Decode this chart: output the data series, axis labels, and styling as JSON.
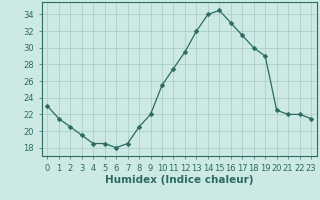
{
  "x": [
    0,
    1,
    2,
    3,
    4,
    5,
    6,
    7,
    8,
    9,
    10,
    11,
    12,
    13,
    14,
    15,
    16,
    17,
    18,
    19,
    20,
    21,
    22,
    23
  ],
  "y": [
    23,
    21.5,
    20.5,
    19.5,
    18.5,
    18.5,
    18,
    18.5,
    20.5,
    22,
    25.5,
    27.5,
    29.5,
    32,
    34,
    34.5,
    33,
    31.5,
    30,
    29,
    22.5,
    22,
    22,
    21.5
  ],
  "line_color": "#2e6b5e",
  "marker": "D",
  "marker_size": 2.5,
  "bg_color": "#cce9e5",
  "grid_minor_color": "#e8a0a0",
  "grid_major_color": "#a8c8c4",
  "xlabel": "Humidex (Indice chaleur)",
  "xlim": [
    -0.5,
    23.5
  ],
  "ylim": [
    17,
    35.5
  ],
  "xticks": [
    0,
    1,
    2,
    3,
    4,
    5,
    6,
    7,
    8,
    9,
    10,
    11,
    12,
    13,
    14,
    15,
    16,
    17,
    18,
    19,
    20,
    21,
    22,
    23
  ],
  "yticks": [
    18,
    20,
    22,
    24,
    26,
    28,
    30,
    32,
    34
  ],
  "tick_fontsize": 6,
  "xlabel_fontsize": 7.5
}
